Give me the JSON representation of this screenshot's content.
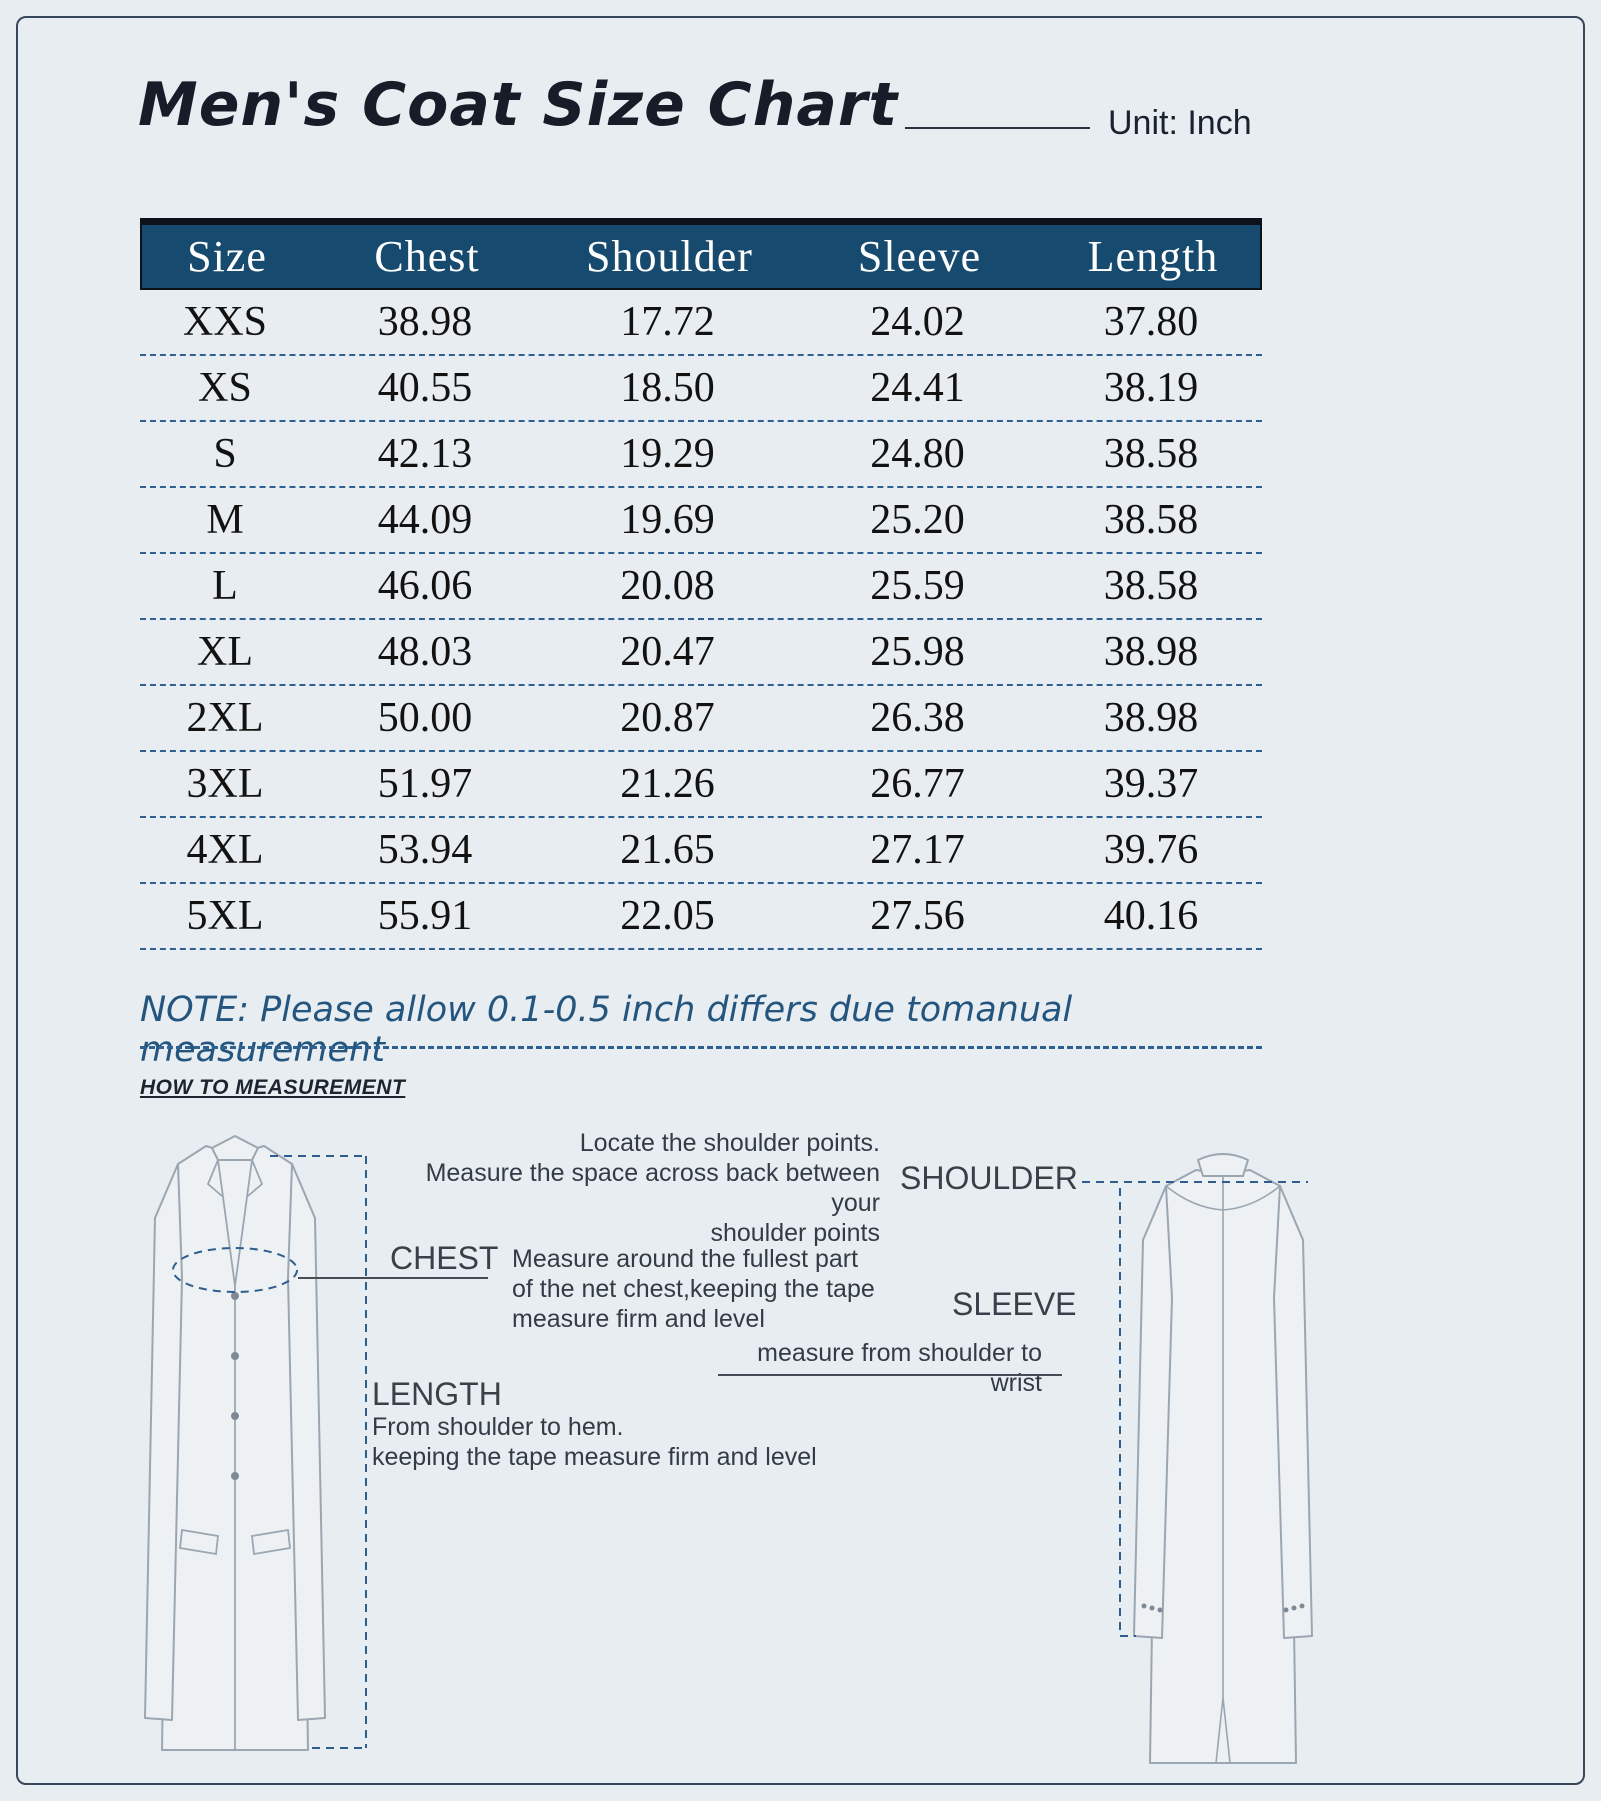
{
  "header": {
    "title": "Men's Coat Size Chart",
    "unit": "Unit: Inch"
  },
  "size_table": {
    "columns": [
      "Size",
      "Chest",
      "Shoulder",
      "Sleeve",
      "Length"
    ],
    "rows": [
      [
        "XXS",
        "38.98",
        "17.72",
        "24.02",
        "37.80"
      ],
      [
        "XS",
        "40.55",
        "18.50",
        "24.41",
        "38.19"
      ],
      [
        "S",
        "42.13",
        "19.29",
        "24.80",
        "38.58"
      ],
      [
        "M",
        "44.09",
        "19.69",
        "25.20",
        "38.58"
      ],
      [
        "L",
        "46.06",
        "20.08",
        "25.59",
        "38.58"
      ],
      [
        "XL",
        "48.03",
        "20.47",
        "25.98",
        "38.98"
      ],
      [
        "2XL",
        "50.00",
        "20.87",
        "26.38",
        "38.98"
      ],
      [
        "3XL",
        "51.97",
        "21.26",
        "26.77",
        "39.37"
      ],
      [
        "4XL",
        "53.94",
        "21.65",
        "27.17",
        "39.76"
      ],
      [
        "5XL",
        "55.91",
        "22.05",
        "27.56",
        "40.16"
      ]
    ]
  },
  "note": "NOTE: Please allow 0.1-0.5 inch differs due tomanual measurement",
  "how_to": {
    "title": "HOW TO MEASUREMENT",
    "shoulder": {
      "label": "SHOULDER",
      "line1": "Locate the shoulder points.",
      "line2": "Measure the space across back between your",
      "line3": "shoulder points"
    },
    "chest": {
      "label": "CHEST",
      "line1": "Measure around the fullest part",
      "line2": "of the net chest,keeping the tape",
      "line3": "measure firm and level"
    },
    "sleeve": {
      "label": "SLEEVE",
      "line1": "measure from shoulder to wrist"
    },
    "length": {
      "label": "LENGTH",
      "line1": "From shoulder to hem.",
      "line2": "keeping the tape measure firm and level"
    }
  },
  "colors": {
    "background": "#e8edf1",
    "frame_border": "#39475a",
    "table_header_bg": "#164a6e",
    "table_header_text": "#ffffff",
    "row_separator_dashed": "#2e6191",
    "note_text": "#24557e",
    "measure_dashed": "#2d5e8e",
    "coat_outline": "#9aa6b1"
  }
}
